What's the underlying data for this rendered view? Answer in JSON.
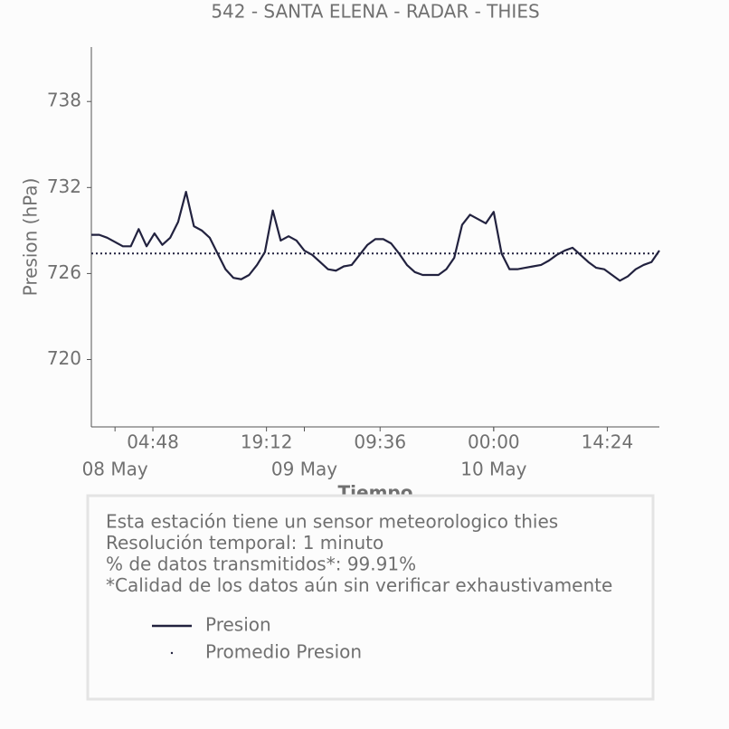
{
  "chart_data": {
    "type": "line",
    "title": "542 - SANTA ELENA - RADAR - THIES",
    "xlabel": "Tiempo",
    "ylabel": "Presion (hPa)",
    "x": [
      "07 May 21:00",
      "07 May 22:00",
      "07 May 23:00",
      "08 May 00:00",
      "08 May 01:00",
      "08 May 02:00",
      "08 May 03:00",
      "08 May 04:00",
      "08 May 05:00",
      "08 May 06:00",
      "08 May 07:00",
      "08 May 08:00",
      "08 May 09:00",
      "08 May 10:00",
      "08 May 11:00",
      "08 May 12:00",
      "08 May 13:00",
      "08 May 14:00",
      "08 May 15:00",
      "08 May 16:00",
      "08 May 17:00",
      "08 May 18:00",
      "08 May 19:00",
      "08 May 20:00",
      "08 May 21:00",
      "08 May 22:00",
      "08 May 23:00",
      "09 May 00:00",
      "09 May 01:00",
      "09 May 02:00",
      "09 May 03:00",
      "09 May 04:00",
      "09 May 05:00",
      "09 May 06:00",
      "09 May 07:00",
      "09 May 08:00",
      "09 May 09:00",
      "09 May 10:00",
      "09 May 11:00",
      "09 May 12:00",
      "09 May 13:00",
      "09 May 14:00",
      "09 May 15:00",
      "09 May 16:00",
      "09 May 17:00",
      "09 May 18:00",
      "09 May 19:00",
      "09 May 20:00",
      "09 May 21:00",
      "09 May 22:00",
      "09 May 23:00",
      "10 May 00:00",
      "10 May 01:00",
      "10 May 02:00",
      "10 May 03:00",
      "10 May 04:00",
      "10 May 05:00",
      "10 May 06:00",
      "10 May 07:00",
      "10 May 08:00",
      "10 May 09:00",
      "10 May 10:00",
      "10 May 11:00",
      "10 May 12:00",
      "10 May 13:00",
      "10 May 14:00",
      "10 May 15:00",
      "10 May 16:00",
      "10 May 17:00",
      "10 May 18:00",
      "10 May 19:00",
      "10 May 20:00",
      "10 May 21:00"
    ],
    "series": [
      {
        "name": "Presion",
        "color": "#22223f",
        "values": [
          728.7,
          728.7,
          728.5,
          728.2,
          727.9,
          727.9,
          729.1,
          727.9,
          728.8,
          728.0,
          728.5,
          729.6,
          731.7,
          729.3,
          729.0,
          728.5,
          727.4,
          726.3,
          725.7,
          725.6,
          725.9,
          726.6,
          727.5,
          730.4,
          728.3,
          728.6,
          728.3,
          727.6,
          727.3,
          726.8,
          726.3,
          726.2,
          726.5,
          726.6,
          727.3,
          728.0,
          728.4,
          728.4,
          728.1,
          727.4,
          726.6,
          726.1,
          725.9,
          725.9,
          725.9,
          726.3,
          727.1,
          729.4,
          730.1,
          729.8,
          729.5,
          730.3,
          727.4,
          726.3,
          726.3,
          726.4,
          726.5,
          726.6,
          726.9,
          727.3,
          727.6,
          727.8,
          727.3,
          726.8,
          726.4,
          726.3,
          725.9,
          725.5,
          725.8,
          726.3,
          726.6,
          726.8,
          727.6
        ]
      },
      {
        "name": "Promedio Presion",
        "color": "#22223f",
        "style": "dotted",
        "value": 727.4
      }
    ],
    "xlim": [
      "07 May 21:00",
      "10 May 21:00"
    ],
    "xticks": [
      {
        "value": "08 May 04:48",
        "label": "04:48"
      },
      {
        "value": "08 May 19:12",
        "label": "19:12"
      },
      {
        "value": "09 May 09:36",
        "label": "09:36"
      },
      {
        "value": "10 May 00:00",
        "label": "00:00"
      },
      {
        "value": "10 May 14:24",
        "label": "14:24"
      }
    ],
    "xticks_days": [
      {
        "value": "08 May 00:00",
        "label": "08 May"
      },
      {
        "value": "09 May 00:00",
        "label": "09 May"
      },
      {
        "value": "10 May 00:00",
        "label": "10 May"
      }
    ],
    "ylim": [
      715.3,
      741.8
    ],
    "yticks": [
      720,
      726,
      732,
      738
    ],
    "notes": [
      "Esta estación tiene un sensor meteorologico thies",
      "Resolución temporal: 1 minuto",
      "% de datos transmitidos*: 99.91%",
      "*Calidad de los datos aún sin verificar exhaustivamente"
    ]
  }
}
